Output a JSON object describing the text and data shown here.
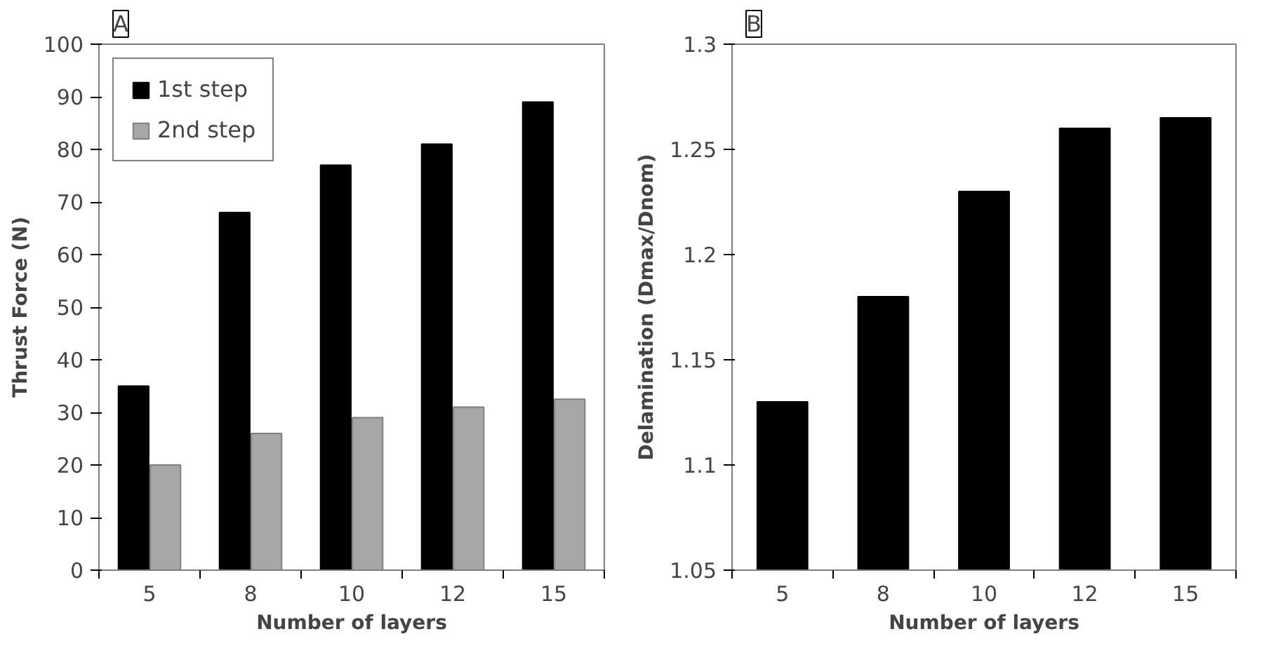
{
  "chart_data": [
    {
      "type": "bar",
      "title": "A",
      "xlabel": "Number of layers",
      "ylabel": "Thrust Force (N)",
      "categories": [
        "5",
        "8",
        "10",
        "12",
        "15"
      ],
      "series": [
        {
          "name": "1st step",
          "color": "#000000",
          "values": [
            35,
            68,
            77,
            81,
            89
          ]
        },
        {
          "name": "2nd step",
          "color": "#a6a6a6",
          "values": [
            20,
            26,
            29,
            31,
            32.5
          ]
        }
      ],
      "ylim": [
        0,
        100
      ],
      "yticks": [
        0,
        10,
        20,
        30,
        40,
        50,
        60,
        70,
        80,
        90,
        100
      ],
      "grid": false,
      "legend": "top left"
    },
    {
      "type": "bar",
      "title": "B",
      "xlabel": "Number of layers",
      "ylabel": "Delamination (Dmax/Dnom)",
      "categories": [
        "5",
        "8",
        "10",
        "12",
        "15"
      ],
      "series": [
        {
          "color": "#000000",
          "values": [
            1.13,
            1.18,
            1.23,
            1.26,
            1.265
          ]
        }
      ],
      "ylim": [
        1.05,
        1.3
      ],
      "yticks": [
        1.05,
        1.1,
        1.15,
        1.2,
        1.25,
        1.3
      ],
      "grid": false
    }
  ]
}
